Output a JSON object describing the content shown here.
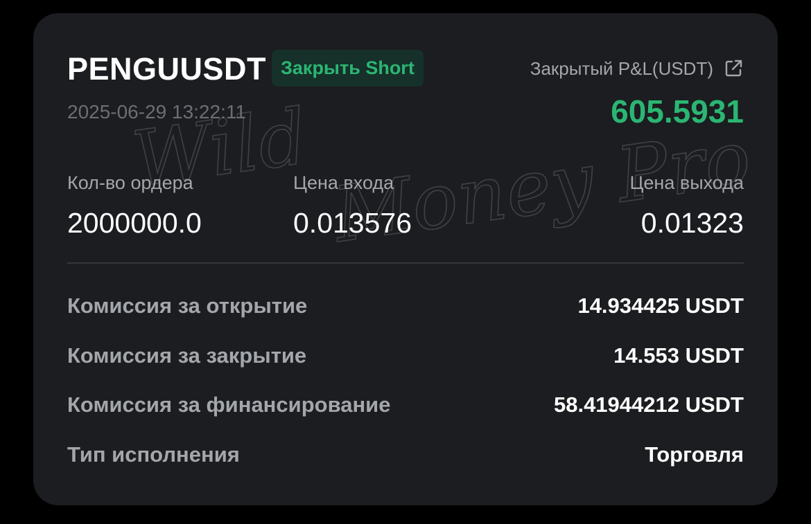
{
  "trade": {
    "symbol": "PENGUUSDT",
    "side_badge": "Закрыть Short",
    "timestamp": "2025-06-29 13:22:11",
    "pnl_label": "Закрытый P&L(USDT)",
    "pnl_value": "605.5931",
    "share_icon": "external-link-icon"
  },
  "stats": [
    {
      "label": "Кол-во ордера",
      "value": "2000000.0"
    },
    {
      "label": "Цена входа",
      "value": "0.013576"
    },
    {
      "label": "Цена выхода",
      "value": "0.01323"
    }
  ],
  "details": [
    {
      "label": "Комиссия за открытие",
      "value": "14.934425 USDT"
    },
    {
      "label": "Комиссия за закрытие",
      "value": "14.553 USDT"
    },
    {
      "label": "Комиссия за финансирование",
      "value": "58.41944212 USDT"
    },
    {
      "label": "Тип исполнения",
      "value": "Торговля"
    }
  ],
  "watermark": "Wild Money Pro",
  "colors": {
    "background": "#000000",
    "card": "#1c1d20",
    "accent_green": "#2bb673",
    "badge_bg": "#16302a",
    "muted_text": "#a3a6ab",
    "timestamp_text": "#6b6e74",
    "divider": "#33353a"
  }
}
